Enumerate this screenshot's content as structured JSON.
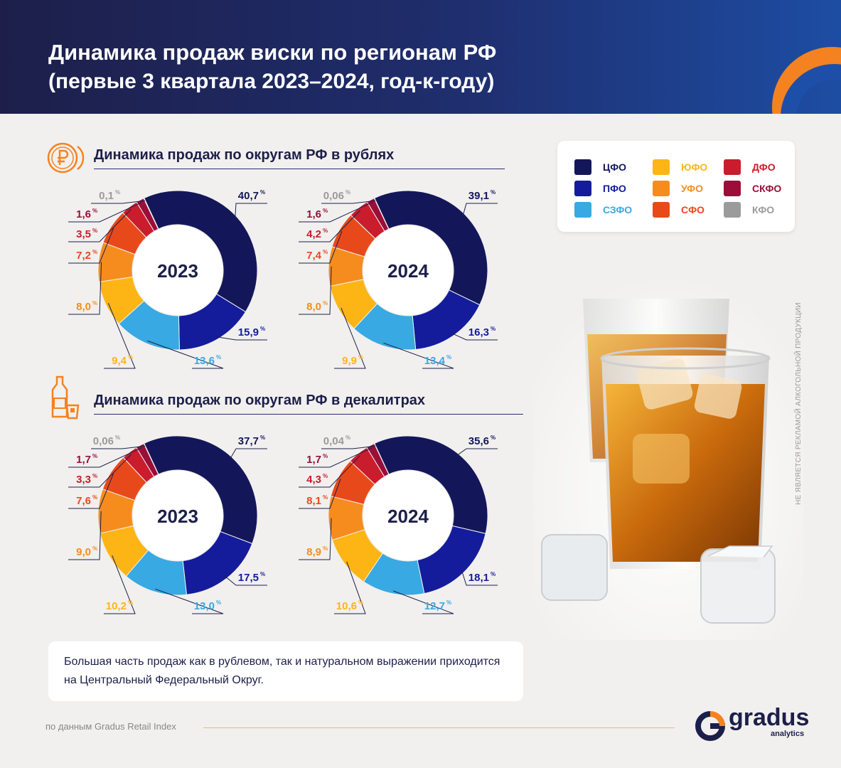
{
  "header": {
    "title": "Динамика продаж виски по регионам РФ",
    "subtitle": "(первые 3 квартала 2023–2024, год-к-году)"
  },
  "colors": {
    "ЦФО": "#13175a",
    "ПФО": "#141c9c",
    "СЗФО": "#38a9e2",
    "ЮФО": "#fdb515",
    "УФО": "#f78c1e",
    "СФО": "#e8491b",
    "ДФО": "#c91c2c",
    "СКФО": "#9b0e3a",
    "КФО": "#9b9b9b"
  },
  "legend": {
    "items": [
      {
        "label": "ЦФО",
        "color": "#13175a"
      },
      {
        "label": "ПФО",
        "color": "#141c9c"
      },
      {
        "label": "СЗФО",
        "color": "#38a9e2"
      },
      {
        "label": "ЮФО",
        "color": "#fdb515"
      },
      {
        "label": "УФО",
        "color": "#f78c1e"
      },
      {
        "label": "СФО",
        "color": "#e8491b"
      },
      {
        "label": "ДФО",
        "color": "#c91c2c"
      },
      {
        "label": "СКФО",
        "color": "#9b0e3a"
      },
      {
        "label": "КФО",
        "color": "#9b9b9b"
      }
    ]
  },
  "sections": {
    "rubles_title": "Динамика продаж по округам РФ в рублях",
    "dal_title": "Динамика продаж по округам РФ в декалитрах"
  },
  "chart_data": [
    {
      "type": "pie",
      "title": "Динамика продаж по округам РФ в рублях",
      "center_label": "2023",
      "categories": [
        "ЦФО",
        "ПФО",
        "СЗФО",
        "ЮФО",
        "УФО",
        "СФО",
        "ДФО",
        "СКФО",
        "КФО"
      ],
      "values": [
        40.7,
        15.9,
        13.6,
        9.4,
        8.0,
        7.2,
        3.5,
        1.6,
        0.1
      ],
      "labels": [
        "40,7",
        "15,9",
        "13,6",
        "9,4",
        "8,0",
        "7,2",
        "3,5",
        "1,6",
        "0,1"
      ],
      "unit": "%"
    },
    {
      "type": "pie",
      "title": "Динамика продаж по округам РФ в рублях",
      "center_label": "2024",
      "categories": [
        "ЦФО",
        "ПФО",
        "СЗФО",
        "ЮФО",
        "УФО",
        "СФО",
        "ДФО",
        "СКФО",
        "КФО"
      ],
      "values": [
        39.1,
        16.3,
        13.4,
        9.9,
        8.0,
        7.4,
        4.2,
        1.6,
        0.06
      ],
      "labels": [
        "39,1",
        "16,3",
        "13,4",
        "9,9",
        "8,0",
        "7,4",
        "4,2",
        "1,6",
        "0,06"
      ],
      "unit": "%"
    },
    {
      "type": "pie",
      "title": "Динамика продаж по округам РФ в декалитрах",
      "center_label": "2023",
      "categories": [
        "ЦФО",
        "ПФО",
        "СЗФО",
        "ЮФО",
        "УФО",
        "СФО",
        "ДФО",
        "СКФО",
        "КФО"
      ],
      "values": [
        37.7,
        17.5,
        13.0,
        10.2,
        9.0,
        7.6,
        3.3,
        1.7,
        0.06
      ],
      "labels": [
        "37,7",
        "17,5",
        "13,0",
        "10,2",
        "9,0",
        "7,6",
        "3,3",
        "1,7",
        "0,06"
      ],
      "unit": "%"
    },
    {
      "type": "pie",
      "title": "Динамика продаж по округам РФ в декалитрах",
      "center_label": "2024",
      "categories": [
        "ЦФО",
        "ПФО",
        "СЗФО",
        "ЮФО",
        "УФО",
        "СФО",
        "ДФО",
        "СКФО",
        "КФО"
      ],
      "values": [
        35.6,
        18.1,
        12.7,
        10.6,
        8.9,
        8.1,
        4.3,
        1.7,
        0.04
      ],
      "labels": [
        "35,6",
        "18,1",
        "12,7",
        "10,6",
        "8,9",
        "8,1",
        "4,3",
        "1,7",
        "0,04"
      ],
      "unit": "%"
    }
  ],
  "note": {
    "text": "Большая часть продаж как в рублевом, так и натуральном выражении приходится на Центральный Федеральный Округ."
  },
  "footer": {
    "source": "по данным Gradus Retail Index",
    "logo": "gradus",
    "logo_sub": "analytics"
  },
  "disclaimer": "НЕ ЯВЛЯЕТСЯ РЕКЛАМОЙ АЛКОГОЛЬНОЙ ПРОДУКЦИИ"
}
